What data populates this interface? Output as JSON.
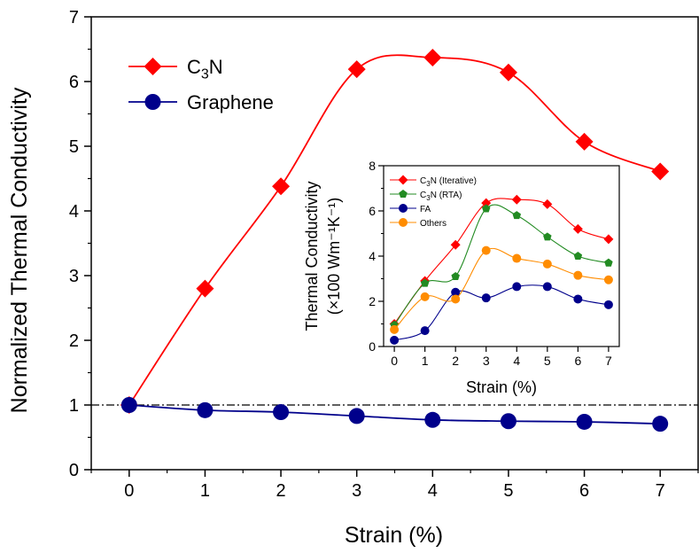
{
  "chart_data": [
    {
      "type": "line",
      "title": "",
      "xlabel": "Strain (%)",
      "ylabel": "Normalized Thermal Conductivity",
      "xlim": [
        -0.5,
        7.5
      ],
      "ylim": [
        0,
        7
      ],
      "x_ticks": [
        "0",
        "1",
        "2",
        "3",
        "4",
        "5",
        "6",
        "7"
      ],
      "y_ticks": [
        "0",
        "1",
        "2",
        "3",
        "4",
        "5",
        "6",
        "7"
      ],
      "legend_position": "top-left",
      "reference_line": {
        "y": 1,
        "style": "dash-dot"
      },
      "x": [
        0,
        1,
        2,
        3,
        4,
        5,
        6,
        7
      ],
      "series": [
        {
          "name": "C3N",
          "base": "C",
          "sub": "3",
          "tail": "N",
          "color": "#ff0000",
          "marker": "diamond",
          "values": [
            1.0,
            2.8,
            4.38,
            6.19,
            6.37,
            6.14,
            5.07,
            4.61
          ]
        },
        {
          "name": "Graphene",
          "base": "Graphene",
          "sub": "",
          "tail": "",
          "color": "#00008b",
          "marker": "circle",
          "values": [
            1.0,
            0.92,
            0.89,
            0.83,
            0.77,
            0.75,
            0.74,
            0.71
          ]
        }
      ]
    },
    {
      "type": "line",
      "title": "",
      "xlabel": "Strain (%)",
      "ylabel_line1": "Thermal Conductivity",
      "ylabel_line2": "(×100 Wm⁻¹K⁻¹)",
      "xlim": [
        -0.35,
        7.35
      ],
      "ylim": [
        0,
        8
      ],
      "x_ticks": [
        "0",
        "1",
        "2",
        "3",
        "4",
        "5",
        "6",
        "7"
      ],
      "y_ticks": [
        "0",
        "2",
        "4",
        "6",
        "8"
      ],
      "legend_position": "top-left",
      "x": [
        0,
        1,
        2,
        3,
        4,
        5,
        6,
        7
      ],
      "series": [
        {
          "name": "C3N (Iterative)",
          "base": "C",
          "sub": "3",
          "tail": "N (Iterative)",
          "color": "#ff0000",
          "marker": "diamond",
          "values": [
            1.0,
            2.9,
            4.5,
            6.35,
            6.5,
            6.3,
            5.2,
            4.75
          ]
        },
        {
          "name": "C3N (RTA)",
          "base": "C",
          "sub": "3",
          "tail": "N (RTA)",
          "color": "#228b22",
          "marker": "pentagon",
          "values": [
            0.95,
            2.8,
            3.1,
            6.1,
            5.8,
            4.85,
            4.0,
            3.7
          ]
        },
        {
          "name": "FA",
          "base": "FA",
          "sub": "",
          "tail": "",
          "color": "#00008b",
          "marker": "circle",
          "values": [
            0.28,
            0.7,
            2.4,
            2.15,
            2.65,
            2.65,
            2.1,
            1.85
          ]
        },
        {
          "name": "Others",
          "base": "Others",
          "sub": "",
          "tail": "",
          "color": "#ff8c00",
          "marker": "circle",
          "values": [
            0.75,
            2.2,
            2.1,
            4.25,
            3.9,
            3.65,
            3.15,
            2.95
          ]
        }
      ]
    }
  ]
}
